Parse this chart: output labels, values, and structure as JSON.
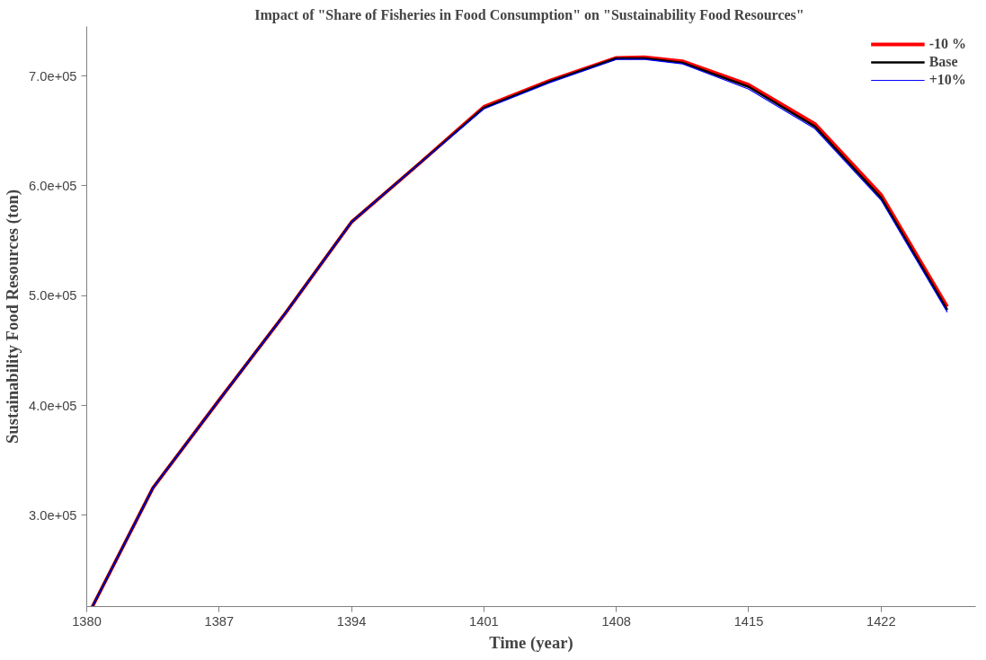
{
  "chart_data": {
    "type": "line",
    "title": "Impact of  \"Share of Fisheries in Food Consumption\" on \"Sustainability Food Resources\"",
    "xlabel": "Time (year)",
    "ylabel": "Sustainability Food Resources (ton)",
    "x": [
      1380.3,
      1383.5,
      1387,
      1390.5,
      1394,
      1397.5,
      1401,
      1404.5,
      1408,
      1409.5,
      1411.5,
      1415,
      1418.5,
      1422,
      1425.5
    ],
    "series": [
      {
        "name": "-10 %",
        "color": "#ff0000",
        "values": [
          217000,
          325000,
          405000,
          484000,
          567000,
          619000,
          672000,
          696000,
          716500,
          717000,
          713500,
          692000,
          656500,
          592000,
          490000
        ]
      },
      {
        "name": "Base",
        "color": "#000000",
        "values": [
          217000,
          325000,
          405000,
          484000,
          567000,
          619000,
          671000,
          695000,
          716000,
          716000,
          712000,
          690000,
          654000,
          589000,
          487000
        ]
      },
      {
        "name": "+10%",
        "color": "#0000ff",
        "values": [
          217000,
          325000,
          405000,
          484000,
          567000,
          619000,
          670000,
          694000,
          715000,
          715000,
          711000,
          688000,
          652000,
          587000,
          485000
        ]
      }
    ],
    "xlim": [
      1380,
      1427
    ],
    "ylim": [
      217000,
      745000
    ],
    "xticks": [
      1380,
      1387,
      1394,
      1401,
      1408,
      1415,
      1422
    ],
    "yticks": [
      {
        "value": 300000,
        "label": "3.0e+05"
      },
      {
        "value": 400000,
        "label": "4.0e+05"
      },
      {
        "value": 500000,
        "label": "5.0e+05"
      },
      {
        "value": 600000,
        "label": "6.0e+05"
      },
      {
        "value": 700000,
        "label": "7.0e+05"
      }
    ],
    "grid": false,
    "legend": "top right",
    "line_style": "solid"
  }
}
